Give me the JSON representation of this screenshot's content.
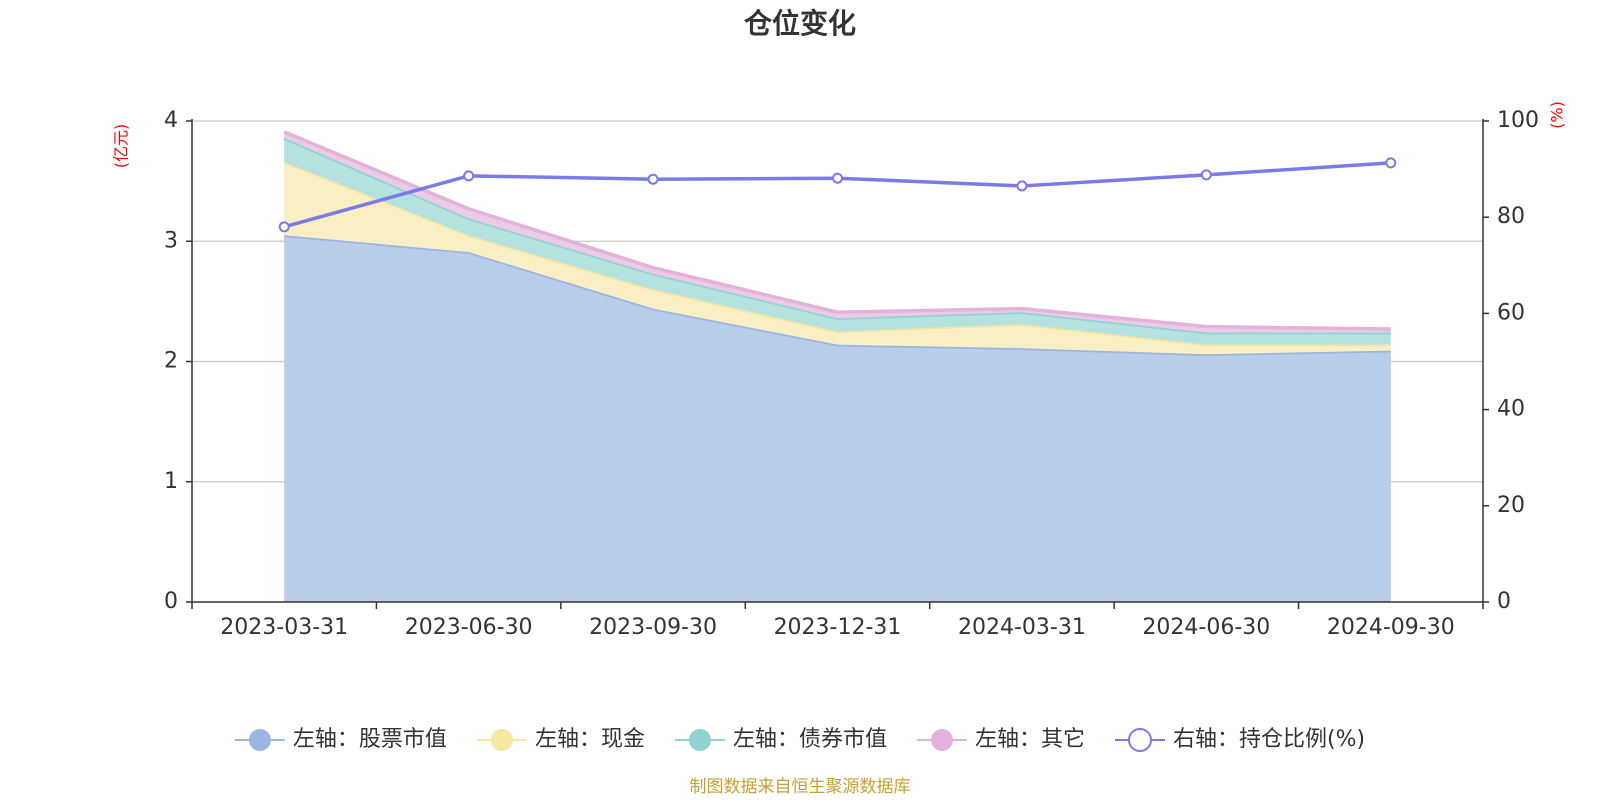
{
  "chart_data": {
    "type": "area",
    "title": "仓位变化",
    "categories": [
      "2023-03-31",
      "2023-06-30",
      "2023-09-30",
      "2023-12-31",
      "2024-03-31",
      "2024-06-30",
      "2024-09-30"
    ],
    "left_axis": {
      "unit_label": "(亿元)",
      "ylim": [
        0,
        4
      ],
      "ticks": [
        "0",
        "1",
        "2",
        "3",
        "4"
      ]
    },
    "right_axis": {
      "unit_label": "(%)",
      "ylim": [
        0,
        100
      ],
      "ticks": [
        "0",
        "20",
        "40",
        "60",
        "80",
        "100"
      ]
    },
    "stacked_series": [
      {
        "name": "左轴：股票市值",
        "axis": "left",
        "color": "#9db5e2",
        "fill": "#b8cdea",
        "values": [
          3.05,
          2.91,
          2.44,
          2.14,
          2.11,
          2.06,
          2.09
        ]
      },
      {
        "name": "左轴：现金",
        "axis": "left",
        "color": "#f5e6a0",
        "fill": "#faefc4",
        "values": [
          0.61,
          0.14,
          0.16,
          0.11,
          0.2,
          0.08,
          0.05
        ]
      },
      {
        "name": "左轴：债券市值",
        "axis": "left",
        "color": "#8fd3d0",
        "fill": "#b4e2e0",
        "values": [
          0.2,
          0.14,
          0.13,
          0.11,
          0.1,
          0.1,
          0.1
        ]
      },
      {
        "name": "左轴：其它",
        "axis": "left",
        "color": "#e2b2da",
        "fill": "#eccae6",
        "values": [
          0.05,
          0.08,
          0.05,
          0.05,
          0.03,
          0.05,
          0.03
        ]
      }
    ],
    "line_series": [
      {
        "name": "右轴：持仓比例(%)",
        "axis": "right",
        "color": "#7b7be8",
        "values": [
          78.0,
          88.6,
          87.9,
          88.1,
          86.5,
          88.8,
          91.3
        ]
      }
    ],
    "legend_position": "bottom",
    "grid": true
  },
  "source_text": "制图数据来自恒生聚源数据库"
}
